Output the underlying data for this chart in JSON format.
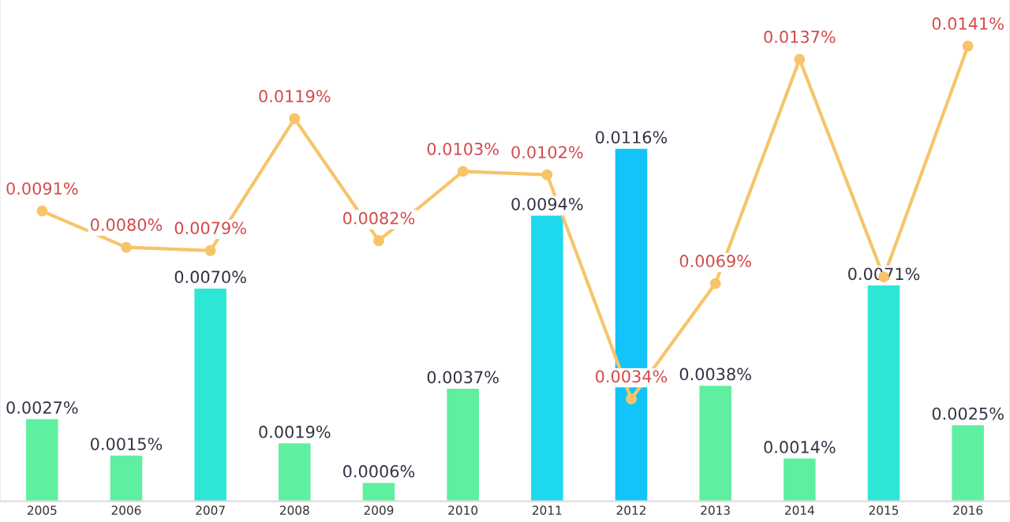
{
  "chart_data": {
    "type": "bar",
    "categories": [
      "2005",
      "2006",
      "2007",
      "2008",
      "2009",
      "2010",
      "2011",
      "2012",
      "2013",
      "2014",
      "2015",
      "2016"
    ],
    "series": [
      {
        "colors": [
          "#5ef0a0",
          "#5ef0a0",
          "#2ee6d6",
          "#5ef0a0",
          "#5ef0a0",
          "#5ef0a0",
          "#1ed8ee",
          "#12c4fa",
          "#5ef0a0",
          "#5ef0a0",
          "#2ee6d6",
          "#5ef0a0"
        ],
        "values": [
          0.0027,
          0.0015,
          0.007,
          0.0019,
          0.0006,
          0.0037,
          0.0094,
          0.0116,
          0.0038,
          0.0014,
          0.0071,
          0.0025
        ],
        "value_labels": [
          "0.0027%",
          "0.0015%",
          "0.0070%",
          "0.0019%",
          "0.0006%",
          "0.0037%",
          "0.0094%",
          "0.0116%",
          "0.0038%",
          "0.0014%",
          "0.0071%",
          "0.0025%"
        ]
      },
      {
        "type": "line",
        "axis": "y2",
        "color": "#f7c46a",
        "marker": "circle",
        "values": [
          0.0091,
          0.008,
          0.0079,
          0.0119,
          0.0082,
          0.0103,
          0.0102,
          0.0034,
          0.0069,
          0.0137,
          0.0071,
          0.0141
        ],
        "value_labels": [
          "0.0091%",
          "0.0080%",
          "0.0079%",
          "0.0119%",
          "0.0082%",
          "0.0103%",
          "0.0102%",
          "0.0034%",
          "0.0069%",
          "0.0137%",
          null,
          "0.0141%"
        ]
      }
    ],
    "ylim": [
      0,
      0.0165
    ],
    "y2lim": [
      0.0003,
      0.0155
    ],
    "tick_labels": "x",
    "grid": false,
    "legend": false
  }
}
